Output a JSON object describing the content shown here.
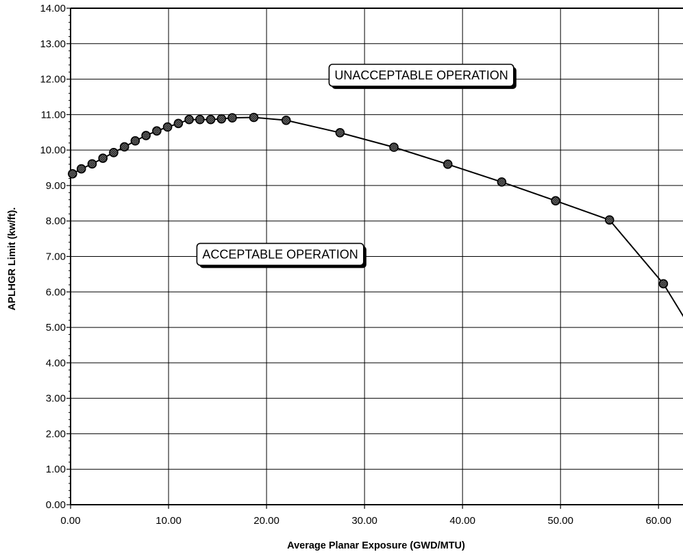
{
  "chart_data": {
    "type": "line",
    "title": "",
    "xlabel": "Average Planar Exposure (GWD/MTU)",
    "ylabel": "APLHGR Limit (kw/ft).",
    "xlim": [
      0,
      62.5
    ],
    "ylim": [
      0,
      14
    ],
    "x_ticks": [
      "0.00",
      "10.00",
      "20.00",
      "30.00",
      "40.00",
      "50.00",
      "60.00"
    ],
    "y_ticks": [
      "0.00",
      "1.00",
      "2.00",
      "3.00",
      "4.00",
      "5.00",
      "6.00",
      "7.00",
      "8.00",
      "9.00",
      "10.00",
      "11.00",
      "12.00",
      "13.00",
      "14.00"
    ],
    "grid": true,
    "series": [
      {
        "marker": "circle",
        "color": "#000000",
        "x": [
          0.0,
          0.2,
          1.1,
          2.2,
          3.3,
          4.4,
          5.5,
          6.6,
          7.7,
          8.8,
          9.9,
          11.0,
          12.1,
          13.2,
          14.3,
          15.4,
          16.5,
          18.7,
          22.0,
          27.5,
          33.0,
          38.5,
          44.0,
          49.5,
          55.0,
          60.5,
          63.0
        ],
        "y": [
          9.25,
          9.33,
          9.47,
          9.61,
          9.77,
          9.93,
          10.09,
          10.26,
          10.41,
          10.54,
          10.65,
          10.75,
          10.86,
          10.86,
          10.86,
          10.88,
          10.91,
          10.92,
          10.84,
          10.49,
          10.08,
          9.6,
          9.1,
          8.57,
          8.03,
          6.23,
          5.1
        ],
        "markers_shown": [
          false,
          true,
          true,
          true,
          true,
          true,
          true,
          true,
          true,
          true,
          true,
          true,
          true,
          true,
          true,
          true,
          true,
          true,
          true,
          true,
          true,
          true,
          true,
          true,
          true,
          true,
          false
        ]
      }
    ],
    "annotations": [
      {
        "text": "UNACCEPTABLE OPERATION",
        "x": 35.8,
        "y": 12.11
      },
      {
        "text": "ACCEPTABLE OPERATION",
        "x": 21.4,
        "y": 7.06
      }
    ]
  }
}
